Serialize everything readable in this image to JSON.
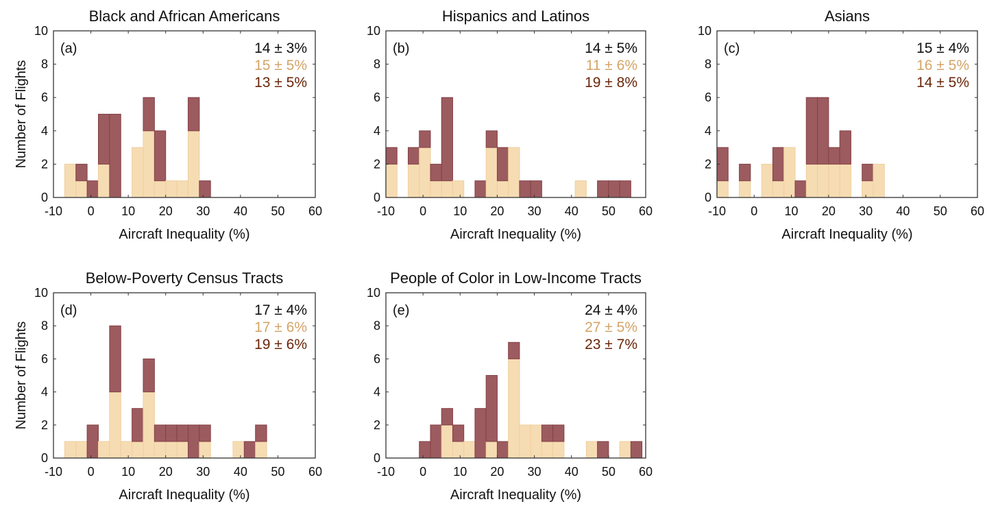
{
  "colors": {
    "tan": "#f6dcb3",
    "tan_edge": "#efcf9e",
    "brown": "#9c5b5f",
    "brown_edge": "#844146",
    "stat_all": "#111111",
    "stat_tan": "#d4a468",
    "stat_brown": "#6a2508"
  },
  "chart_data": [
    {
      "type": "bar",
      "stacked": true,
      "label": "(a)",
      "title": "Black and African Americans",
      "xlabel": "Aircraft Inequality (%)",
      "ylabel": "Number of Flights",
      "xlim": [
        -10,
        60
      ],
      "ylim": [
        0,
        10
      ],
      "xticks": [
        "-10",
        "0",
        "10",
        "20",
        "30",
        "40",
        "50",
        "60"
      ],
      "yticks": [
        "0",
        "2",
        "4",
        "6",
        "8",
        "10"
      ],
      "bin_start": -10,
      "bin_width": 3,
      "stats": [
        "14 ± 3%",
        "15 ± 5%",
        "13 ± 5%"
      ],
      "series": [
        {
          "name": "tan",
          "values": [
            0,
            2,
            1,
            0,
            2,
            0,
            0,
            3,
            4,
            1,
            1,
            1,
            4,
            0,
            0,
            0,
            0,
            0,
            0,
            0,
            0,
            0,
            0,
            0
          ]
        },
        {
          "name": "brown",
          "values": [
            0,
            0,
            1,
            1,
            3,
            5,
            0,
            0,
            2,
            3,
            0,
            0,
            2,
            1,
            0,
            0,
            0,
            0,
            0,
            0,
            0,
            0,
            0,
            0
          ]
        }
      ]
    },
    {
      "type": "bar",
      "stacked": true,
      "label": "(b)",
      "title": "Hispanics and Latinos",
      "xlabel": "Aircraft Inequality (%)",
      "ylabel": "",
      "xlim": [
        -10,
        60
      ],
      "ylim": [
        0,
        10
      ],
      "xticks": [
        "-10",
        "0",
        "10",
        "20",
        "30",
        "40",
        "50",
        "60"
      ],
      "yticks": [
        "0",
        "2",
        "4",
        "6",
        "8",
        "10"
      ],
      "bin_start": -10,
      "bin_width": 3,
      "stats": [
        "14 ± 5%",
        "11 ± 6%",
        "19 ± 8%"
      ],
      "series": [
        {
          "name": "tan",
          "values": [
            2,
            0,
            2,
            3,
            1,
            1,
            1,
            0,
            0,
            3,
            1,
            3,
            0,
            0,
            0,
            0,
            0,
            1,
            0,
            0,
            0,
            0,
            0,
            0
          ]
        },
        {
          "name": "brown",
          "values": [
            1,
            0,
            1,
            1,
            1,
            5,
            0,
            0,
            1,
            1,
            2,
            0,
            1,
            1,
            0,
            0,
            0,
            0,
            0,
            1,
            1,
            1,
            0,
            0
          ]
        }
      ]
    },
    {
      "type": "bar",
      "stacked": true,
      "label": "(c)",
      "title": "Asians",
      "xlabel": "Aircraft Inequality (%)",
      "ylabel": "",
      "xlim": [
        -10,
        60
      ],
      "ylim": [
        0,
        10
      ],
      "xticks": [
        "-10",
        "0",
        "10",
        "20",
        "30",
        "40",
        "50",
        "60"
      ],
      "yticks": [
        "0",
        "2",
        "4",
        "6",
        "8",
        "10"
      ],
      "bin_start": -10,
      "bin_width": 3,
      "stats": [
        "15 ± 4%",
        "16 ± 5%",
        "14 ± 5%"
      ],
      "series": [
        {
          "name": "tan",
          "values": [
            1,
            0,
            1,
            0,
            2,
            1,
            3,
            0,
            2,
            2,
            2,
            2,
            0,
            1,
            2,
            0,
            0,
            0,
            0,
            0,
            0,
            0,
            0,
            0
          ]
        },
        {
          "name": "brown",
          "values": [
            2,
            0,
            1,
            0,
            0,
            2,
            0,
            1,
            4,
            4,
            1,
            2,
            0,
            1,
            0,
            0,
            0,
            0,
            0,
            0,
            0,
            0,
            0,
            0
          ]
        }
      ]
    },
    {
      "type": "bar",
      "stacked": true,
      "label": "(d)",
      "title": "Below-Poverty Census Tracts",
      "xlabel": "Aircraft Inequality (%)",
      "ylabel": "Number of Flights",
      "xlim": [
        -10,
        60
      ],
      "ylim": [
        0,
        10
      ],
      "xticks": [
        "-10",
        "0",
        "10",
        "20",
        "30",
        "40",
        "50",
        "60"
      ],
      "yticks": [
        "0",
        "2",
        "4",
        "6",
        "8",
        "10"
      ],
      "bin_start": -10,
      "bin_width": 3,
      "stats": [
        "17 ± 4%",
        "17 ± 6%",
        "19 ± 6%"
      ],
      "series": [
        {
          "name": "tan",
          "values": [
            0,
            1,
            1,
            0,
            1,
            4,
            1,
            1,
            4,
            1,
            1,
            1,
            0,
            1,
            0,
            0,
            1,
            0,
            1,
            0,
            0,
            0,
            0,
            0
          ]
        },
        {
          "name": "brown",
          "values": [
            0,
            0,
            0,
            2,
            0,
            4,
            0,
            2,
            2,
            1,
            1,
            1,
            2,
            1,
            0,
            0,
            0,
            1,
            1,
            0,
            0,
            0,
            0,
            0
          ]
        }
      ]
    },
    {
      "type": "bar",
      "stacked": true,
      "label": "(e)",
      "title": "People of Color in Low-Income Tracts",
      "xlabel": "Aircraft Inequality (%)",
      "ylabel": "",
      "xlim": [
        -10,
        60
      ],
      "ylim": [
        0,
        10
      ],
      "xticks": [
        "-10",
        "0",
        "10",
        "20",
        "30",
        "40",
        "50",
        "60"
      ],
      "yticks": [
        "0",
        "2",
        "4",
        "6",
        "8",
        "10"
      ],
      "bin_start": -10,
      "bin_width": 3,
      "stats": [
        "24 ± 4%",
        "27 ± 5%",
        "23 ± 7%"
      ],
      "series": [
        {
          "name": "tan",
          "values": [
            0,
            0,
            0,
            0,
            0,
            2,
            1,
            1,
            0,
            1,
            0,
            6,
            2,
            2,
            1,
            1,
            0,
            0,
            1,
            0,
            0,
            1,
            0,
            0
          ]
        },
        {
          "name": "brown",
          "values": [
            0,
            0,
            0,
            1,
            2,
            1,
            1,
            0,
            3,
            4,
            1,
            1,
            0,
            0,
            1,
            1,
            0,
            0,
            0,
            1,
            0,
            0,
            1,
            0
          ]
        }
      ]
    }
  ]
}
